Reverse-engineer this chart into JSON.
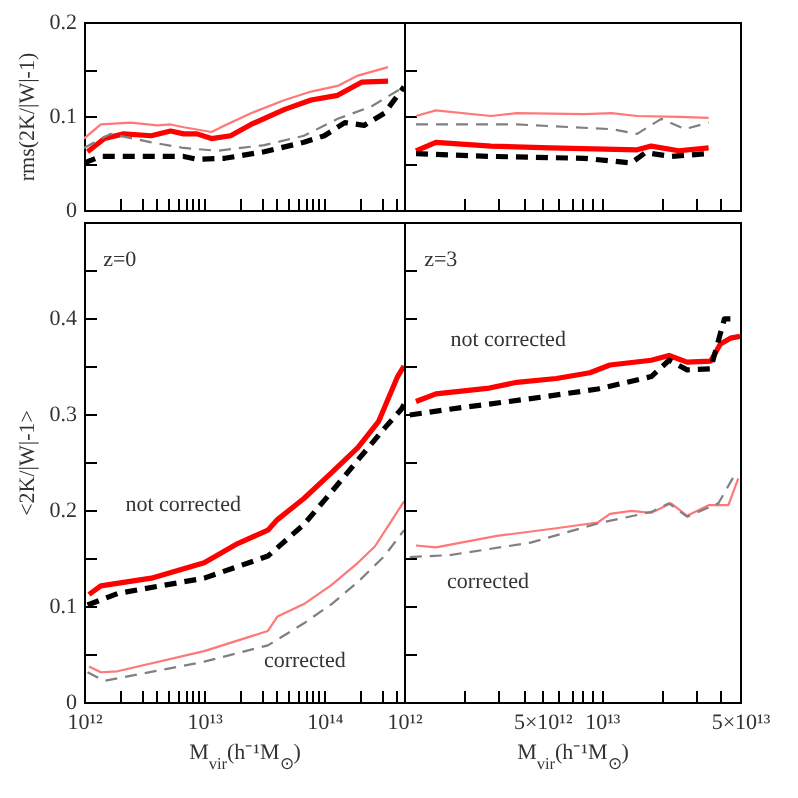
{
  "chart_data": [
    {
      "type": "line",
      "ylabel": "rms(2K/|W|-1)",
      "log": "x",
      "tick_labels": "y",
      "xlim": [
        1000000000000.0,
        460000000000000.0
      ],
      "ylim": [
        0,
        0.2
      ],
      "xticks": [
        {
          "value": 1000000000000.0,
          "label": null
        },
        {
          "value": 2000000000000.0,
          "label": null
        },
        {
          "value": 3000000000000.0,
          "label": null
        },
        {
          "value": 4000000000000.0,
          "label": null
        },
        {
          "value": 5000000000000.0,
          "label": null
        },
        {
          "value": 6000000000000.0,
          "label": null
        },
        {
          "value": 7000000000000.0,
          "label": null
        },
        {
          "value": 8000000000000.0,
          "label": null
        },
        {
          "value": 9000000000000.0,
          "label": null
        },
        {
          "value": 10000000000000.0,
          "label": null
        },
        {
          "value": 20000000000000.0,
          "label": null
        },
        {
          "value": 30000000000000.0,
          "label": null
        },
        {
          "value": 40000000000000.0,
          "label": null
        },
        {
          "value": 50000000000000.0,
          "label": null
        },
        {
          "value": 60000000000000.0,
          "label": null
        },
        {
          "value": 70000000000000.0,
          "label": null
        },
        {
          "value": 80000000000000.0,
          "label": null
        },
        {
          "value": 90000000000000.0,
          "label": null
        },
        {
          "value": 100000000000000.0,
          "label": null
        },
        {
          "value": 200000000000000.0,
          "label": null
        },
        {
          "value": 300000000000000.0,
          "label": null
        },
        {
          "value": 400000000000000.0,
          "label": null
        }
      ],
      "yticks": [
        0,
        {
          "value": 0.05,
          "label": null
        },
        0.1,
        {
          "value": 0.15,
          "label": null
        },
        0.2
      ],
      "series": [
        {
          "color": "#ff0000",
          "x": [
            1070000000000.0,
            1480000000000.0,
            2140000000000.0,
            3630000000000.0,
            5250000000000.0,
            6760000000000.0,
            8710000000000.0,
            11500000000000.0,
            16600000000000.0,
            24500000000000.0,
            46800000000000.0,
            77600000000000.0,
            129000000000000.0,
            204000000000000.0,
            339000000000000.0
          ],
          "values": [
            0.062,
            0.076,
            0.081,
            0.079,
            0.084,
            0.081,
            0.081,
            0.076,
            0.079,
            0.091,
            0.107,
            0.117,
            0.122,
            0.136,
            0.137
          ]
        },
        {
          "color": "#000000",
          "line_style": "dashed",
          "x": [
            1000000000000.0,
            1380000000000.0,
            3630000000000.0,
            6760000000000.0,
            8710000000000.0,
            14800000000000.0,
            31600000000000.0,
            67600000000000.0,
            100000000000000.0,
            148000000000000.0,
            214000000000000.0,
            316000000000000.0,
            460000000000000.0
          ],
          "values": [
            0.05,
            0.057,
            0.057,
            0.057,
            0.054,
            0.055,
            0.062,
            0.072,
            0.079,
            0.093,
            0.09,
            0.103,
            0.131
          ]
        },
        {
          "color": "#ff7878",
          "x": [
            1000000000000.0,
            1380000000000.0,
            2450000000000.0,
            4070000000000.0,
            5250000000000.0,
            6760000000000.0,
            11500000000000.0,
            14800000000000.0,
            24500000000000.0,
            46800000000000.0,
            77600000000000.0,
            129000000000000.0,
            190000000000000.0,
            339000000000000.0
          ],
          "values": [
            0.076,
            0.091,
            0.093,
            0.09,
            0.091,
            0.088,
            0.083,
            0.09,
            0.103,
            0.117,
            0.126,
            0.132,
            0.143,
            0.152
          ]
        },
        {
          "color": "#808080",
          "line_style": "dashed",
          "x": [
            1000000000000.0,
            1660000000000.0,
            3630000000000.0,
            6760000000000.0,
            12900000000000.0,
            31600000000000.0,
            67600000000000.0,
            129000000000000.0,
            245000000000000.0,
            460000000000000.0
          ],
          "values": [
            0.066,
            0.081,
            0.072,
            0.066,
            0.063,
            0.069,
            0.079,
            0.097,
            0.11,
            0.131
          ]
        }
      ]
    },
    {
      "type": "line",
      "log": "x",
      "tick_labels": false,
      "xlim": [
        1000000000000.0,
        50000000000000.0
      ],
      "ylim": [
        0,
        0.2
      ],
      "xticks": [
        {
          "value": 1000000000000.0,
          "label": null
        },
        {
          "value": 2000000000000.0,
          "label": null
        },
        {
          "value": 3000000000000.0,
          "label": null
        },
        {
          "value": 4000000000000.0,
          "label": null
        },
        {
          "value": 5000000000000.0,
          "label": null
        },
        {
          "value": 6000000000000.0,
          "label": null
        },
        {
          "value": 7000000000000.0,
          "label": null
        },
        {
          "value": 8000000000000.0,
          "label": null
        },
        {
          "value": 9000000000000.0,
          "label": null
        },
        {
          "value": 10000000000000.0,
          "label": null
        },
        {
          "value": 20000000000000.0,
          "label": null
        },
        {
          "value": 30000000000000.0,
          "label": null
        },
        {
          "value": 40000000000000.0,
          "label": null
        },
        {
          "value": 50000000000000.0,
          "label": null
        }
      ],
      "yticks": [
        0,
        {
          "value": 0.05,
          "label": null
        },
        0.1,
        {
          "value": 0.15,
          "label": null
        },
        0.2
      ],
      "series": [
        {
          "color": "#ff0000",
          "x": [
            1150000000000.0,
            1450000000000.0,
            2750000000000.0,
            5500000000000.0,
            15100000000000.0,
            17800000000000.0,
            24500000000000.0,
            34700000000000.0
          ],
          "values": [
            0.063,
            0.072,
            0.068,
            0.066,
            0.064,
            0.068,
            0.063,
            0.066
          ]
        },
        {
          "color": "#000000",
          "line_style": "dashed",
          "x": [
            1150000000000.0,
            2750000000000.0,
            8130000000000.0,
            14100000000000.0,
            16600000000000.0,
            22400000000000.0,
            34700000000000.0
          ],
          "values": [
            0.06,
            0.057,
            0.055,
            0.05,
            0.061,
            0.057,
            0.06
          ]
        },
        {
          "color": "#ff7878",
          "x": [
            1150000000000.0,
            1450000000000.0,
            2750000000000.0,
            3720000000000.0,
            8130000000000.0,
            11200000000000.0,
            15100000000000.0,
            24500000000000.0,
            34700000000000.0
          ],
          "values": [
            0.1,
            0.106,
            0.1,
            0.103,
            0.102,
            0.103,
            0.1,
            0.099,
            0.098
          ]
        },
        {
          "color": "#808080",
          "line_style": "dashed",
          "x": [
            1150000000000.0,
            3720000000000.0,
            11200000000000.0,
            15100000000000.0,
            20000000000000.0,
            26300000000000.0,
            34700000000000.0
          ],
          "values": [
            0.091,
            0.091,
            0.086,
            0.081,
            0.097,
            0.086,
            0.093
          ]
        }
      ]
    },
    {
      "type": "line",
      "xlabel": "M$_{vir}$(h⁻¹M$_{⊙}$)",
      "ylabel": "<2K/|W|-1>",
      "log": "x",
      "xlim": [
        1000000000000.0,
        460000000000000.0
      ],
      "ylim": [
        0,
        0.5
      ],
      "xticks": [
        {
          "value": 1000000000000.0,
          "label": "10¹²"
        },
        {
          "value": 2000000000000.0,
          "label": null
        },
        {
          "value": 3000000000000.0,
          "label": null
        },
        {
          "value": 4000000000000.0,
          "label": null
        },
        {
          "value": 5000000000000.0,
          "label": null
        },
        {
          "value": 6000000000000.0,
          "label": null
        },
        {
          "value": 7000000000000.0,
          "label": null
        },
        {
          "value": 8000000000000.0,
          "label": null
        },
        {
          "value": 9000000000000.0,
          "label": null
        },
        {
          "value": 10000000000000.0,
          "label": "10¹³"
        },
        {
          "value": 20000000000000.0,
          "label": null
        },
        {
          "value": 30000000000000.0,
          "label": null
        },
        {
          "value": 40000000000000.0,
          "label": null
        },
        {
          "value": 50000000000000.0,
          "label": null
        },
        {
          "value": 60000000000000.0,
          "label": null
        },
        {
          "value": 70000000000000.0,
          "label": null
        },
        {
          "value": 80000000000000.0,
          "label": null
        },
        {
          "value": 90000000000000.0,
          "label": null
        },
        {
          "value": 100000000000000.0,
          "label": "10¹⁴"
        },
        {
          "value": 200000000000000.0,
          "label": null
        },
        {
          "value": 300000000000000.0,
          "label": null
        },
        {
          "value": 400000000000000.0,
          "label": null
        }
      ],
      "yticks": [
        0,
        {
          "value": 0.05,
          "label": null
        },
        0.1,
        {
          "value": 0.15,
          "label": null
        },
        0.2,
        {
          "value": 0.25,
          "label": null
        },
        0.3,
        {
          "value": 0.35,
          "label": null
        },
        0.4,
        {
          "value": 0.45,
          "label": null
        },
        {
          "value": 0.5,
          "label": null
        }
      ],
      "annotations": [
        "z=0",
        "not corrected",
        "corrected"
      ],
      "series": [
        {
          "color": "#ff0000",
          "x": [
            1100000000000.0,
            1380000000000.0,
            3630000000000.0,
            10000000000000.0,
            19000000000000.0,
            33900000000000.0,
            40700000000000.0,
            67600000000000.0,
            115000000000000.0,
            190000000000000.0,
            282000000000000.0,
            407000000000000.0,
            460000000000000.0
          ],
          "values": [
            0.112,
            0.121,
            0.129,
            0.145,
            0.165,
            0.179,
            0.19,
            0.212,
            0.239,
            0.265,
            0.292,
            0.339,
            0.35
          ]
        },
        {
          "color": "#000000",
          "line_style": "dashed",
          "x": [
            1070000000000.0,
            1900000000000.0,
            10000000000000.0,
            33900000000000.0,
            67600000000000.0,
            115000000000000.0,
            190000000000000.0,
            316000000000000.0,
            437000000000000.0,
            460000000000000.0
          ],
          "values": [
            0.101,
            0.113,
            0.129,
            0.152,
            0.185,
            0.219,
            0.252,
            0.285,
            0.305,
            0.31
          ]
        },
        {
          "color": "#ff7878",
          "x": [
            1100000000000.0,
            1380000000000.0,
            1900000000000.0,
            10000000000000.0,
            33900000000000.0,
            40700000000000.0,
            67600000000000.0,
            115000000000000.0,
            190000000000000.0,
            263000000000000.0,
            363000000000000.0,
            460000000000000.0
          ],
          "values": [
            0.037,
            0.031,
            0.032,
            0.053,
            0.074,
            0.089,
            0.102,
            0.122,
            0.145,
            0.162,
            0.189,
            0.209
          ]
        },
        {
          "color": "#808080",
          "line_style": "dashed",
          "x": [
            1070000000000.0,
            1480000000000.0,
            10000000000000.0,
            33900000000000.0,
            67600000000000.0,
            115000000000000.0,
            190000000000000.0,
            316000000000000.0,
            460000000000000.0
          ],
          "values": [
            0.031,
            0.022,
            0.042,
            0.059,
            0.082,
            0.102,
            0.125,
            0.152,
            0.179
          ]
        }
      ]
    },
    {
      "type": "line",
      "xlabel": "M$_{vir}$(h⁻¹M$_{⊙}$)",
      "log": "x",
      "tick_labels": "x",
      "xlim": [
        1000000000000.0,
        50000000000000.0
      ],
      "ylim": [
        0,
        0.5
      ],
      "xticks": [
        {
          "value": 1000000000000.0,
          "label": "10¹²"
        },
        {
          "value": 2000000000000.0,
          "label": null
        },
        {
          "value": 3000000000000.0,
          "label": null
        },
        {
          "value": 4000000000000.0,
          "label": null
        },
        {
          "value": 5000000000000.0,
          "label": "5×10¹²"
        },
        {
          "value": 6000000000000.0,
          "label": null
        },
        {
          "value": 7000000000000.0,
          "label": null
        },
        {
          "value": 8000000000000.0,
          "label": null
        },
        {
          "value": 9000000000000.0,
          "label": null
        },
        {
          "value": 10000000000000.0,
          "label": "10¹³"
        },
        {
          "value": 20000000000000.0,
          "label": null
        },
        {
          "value": 30000000000000.0,
          "label": null
        },
        {
          "value": 40000000000000.0,
          "label": null
        },
        {
          "value": 50000000000000.0,
          "label": "5×10¹³"
        }
      ],
      "yticks": [
        0,
        {
          "value": 0.05,
          "label": null
        },
        0.1,
        {
          "value": 0.15,
          "label": null
        },
        0.2,
        {
          "value": 0.25,
          "label": null
        },
        0.3,
        {
          "value": 0.35,
          "label": null
        },
        0.4,
        {
          "value": 0.45,
          "label": null
        },
        {
          "value": 0.5,
          "label": null
        }
      ],
      "annotations": [
        "z=3",
        "not corrected",
        "corrected"
      ],
      "series": [
        {
          "color": "#ff0000",
          "x": [
            1150000000000.0,
            1450000000000.0,
            2700000000000.0,
            3720000000000.0,
            5890000000000.0,
            8710000000000.0,
            11000000000000.0,
            17800000000000.0,
            21900000000000.0,
            27000000000000.0,
            35500000000000.0,
            39800000000000.0,
            44700000000000.0,
            50000000000000.0
          ],
          "values": [
            0.313,
            0.321,
            0.327,
            0.333,
            0.337,
            0.343,
            0.351,
            0.356,
            0.361,
            0.354,
            0.355,
            0.373,
            0.379,
            0.381
          ]
        },
        {
          "color": "#000000",
          "line_style": "dashed",
          "x": [
            1070000000000.0,
            1700000000000.0,
            4370000000000.0,
            9550000000000.0,
            17800000000000.0,
            21900000000000.0,
            27000000000000.0,
            35500000000000.0,
            41700000000000.0,
            44700000000000.0
          ],
          "values": [
            0.299,
            0.305,
            0.316,
            0.326,
            0.339,
            0.356,
            0.346,
            0.347,
            0.399,
            0.399
          ]
        },
        {
          "color": "#ff7878",
          "x": [
            1150000000000.0,
            1450000000000.0,
            2950000000000.0,
            5890000000000.0,
            9550000000000.0,
            11000000000000.0,
            14100000000000.0,
            17800000000000.0,
            22400000000000.0,
            27000000000000.0,
            34700000000000.0,
            43700000000000.0,
            49000000000000.0
          ],
          "values": [
            0.163,
            0.161,
            0.173,
            0.181,
            0.187,
            0.196,
            0.199,
            0.197,
            0.207,
            0.194,
            0.205,
            0.205,
            0.233
          ]
        },
        {
          "color": "#808080",
          "line_style": "dashed",
          "x": [
            1070000000000.0,
            1700000000000.0,
            4370000000000.0,
            9550000000000.0,
            17800000000000.0,
            21900000000000.0,
            27000000000000.0,
            38900000000000.0,
            46800000000000.0
          ],
          "values": [
            0.151,
            0.153,
            0.166,
            0.186,
            0.198,
            0.207,
            0.193,
            0.207,
            0.236
          ]
        }
      ]
    }
  ]
}
